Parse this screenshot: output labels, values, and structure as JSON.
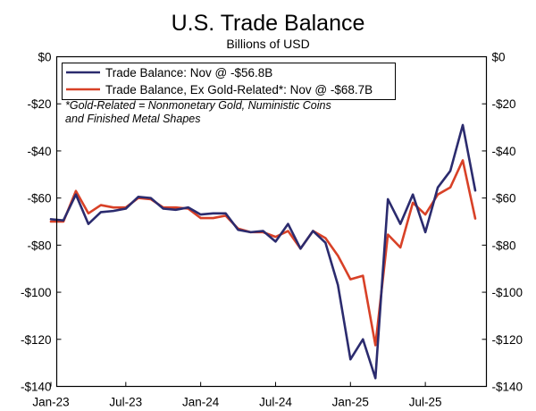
{
  "title": "U.S. Trade Balance",
  "subtitle": "Billions of USD",
  "chart_data": {
    "type": "line",
    "title": "U.S. Trade Balance",
    "subtitle": "Billions of USD",
    "xlabel": "",
    "ylabel": "",
    "ylim": [
      -140,
      0
    ],
    "y_ticks": [
      "$0",
      "-$20",
      "-$40",
      "-$60",
      "-$80",
      "-$100",
      "-$120",
      "-$140"
    ],
    "y_tick_values": [
      0,
      -20,
      -40,
      -60,
      -80,
      -100,
      -120,
      -140
    ],
    "x_ticks": [
      "Jan-23",
      "Jul-23",
      "Jan-24",
      "Jul-24",
      "Jan-25",
      "Jul-25"
    ],
    "x_tick_values": [
      "2023-01",
      "2023-07",
      "2024-01",
      "2024-07",
      "2025-01",
      "2025-07"
    ],
    "grid": false,
    "legend_position": "top-left",
    "x": [
      "2023-01",
      "2023-02",
      "2023-03",
      "2023-04",
      "2023-05",
      "2023-06",
      "2023-07",
      "2023-08",
      "2023-09",
      "2023-10",
      "2023-11",
      "2023-12",
      "2024-01",
      "2024-02",
      "2024-03",
      "2024-04",
      "2024-05",
      "2024-06",
      "2024-07",
      "2024-08",
      "2024-09",
      "2024-10",
      "2024-11",
      "2024-12",
      "2025-01",
      "2025-02",
      "2025-03",
      "2025-04",
      "2025-05",
      "2025-06",
      "2025-07",
      "2025-08",
      "2025-09",
      "2025-10",
      "2025-11"
    ],
    "series": [
      {
        "name": "Trade Balance: Nov @ -$56.8B",
        "color": "#2b2b6e",
        "values": [
          -69,
          -69.5,
          -58.5,
          -71,
          -66,
          -65.5,
          -64.5,
          -59.5,
          -60,
          -64.5,
          -65,
          -64,
          -67,
          -66.5,
          -66.5,
          -73.5,
          -74.5,
          -74,
          -78.5,
          -71,
          -81.5,
          -74,
          -79,
          -97,
          -128.5,
          -120,
          -136.5,
          -60.5,
          -71,
          -58.5,
          -74.5,
          -55.5,
          -48.5,
          -29,
          -56.8
        ]
      },
      {
        "name": "Trade Balance, Ex Gold-Related*: Nov @ -$68.7B",
        "color": "#d84127",
        "values": [
          -70,
          -70,
          -57,
          -66.5,
          -63,
          -64,
          -64,
          -60,
          -60.5,
          -64,
          -64,
          -64.5,
          -68.5,
          -68.5,
          -67.5,
          -73,
          -74.5,
          -74.5,
          -76.5,
          -74,
          -81.5,
          -74,
          -77,
          -84.5,
          -94.5,
          -93,
          -122.5,
          -75.5,
          -81,
          -62,
          -67,
          -58.5,
          -55.5,
          -44,
          -68.7
        ]
      }
    ],
    "annotations": [
      "*Gold-Related = Nonmonetary Gold, Nuministic Coins",
      "and Finished Metal Shapes"
    ]
  }
}
